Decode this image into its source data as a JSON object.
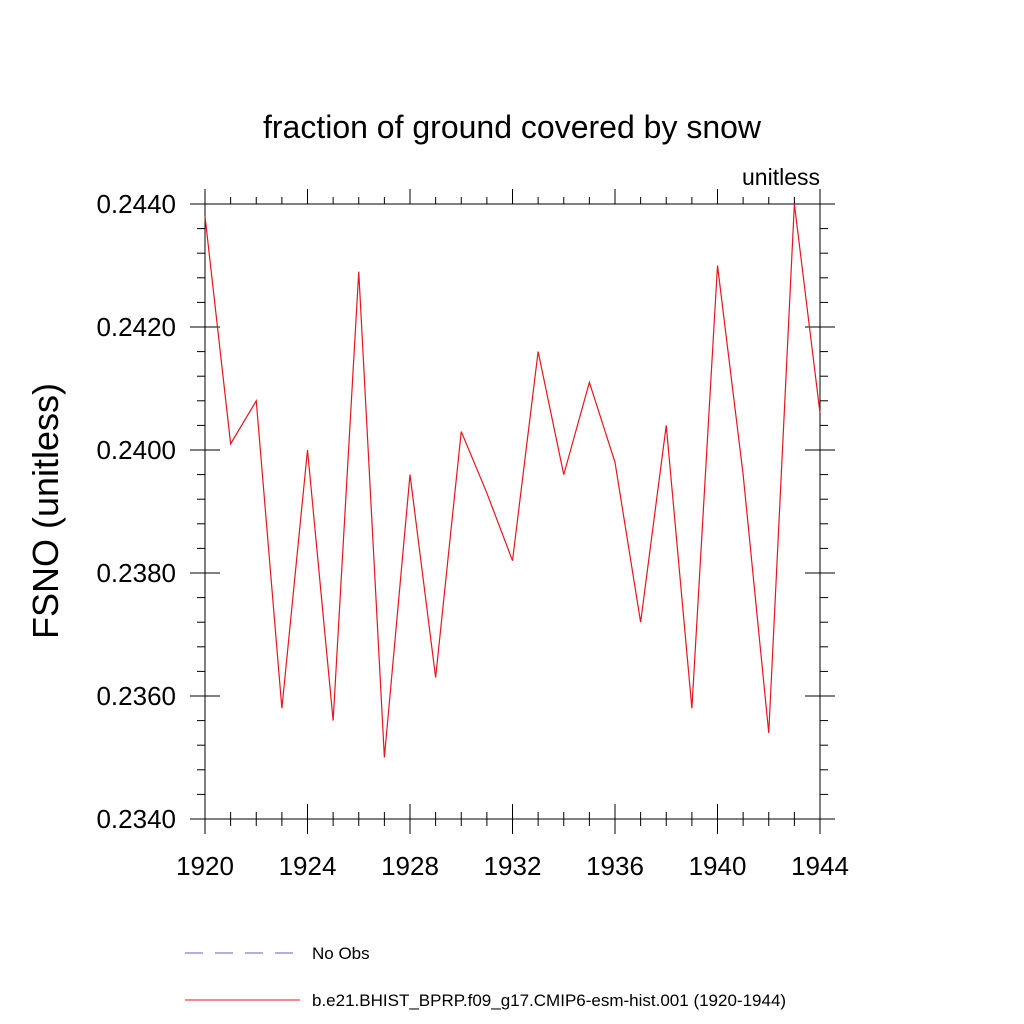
{
  "chart_data": {
    "type": "line",
    "title": "fraction of ground covered by snow",
    "units_label": "unitless",
    "ylabel": "FSNO  (unitless)",
    "xlabel": "",
    "xlim": [
      1920,
      1944
    ],
    "ylim": [
      0.234,
      0.244
    ],
    "x_ticks": [
      1920,
      1924,
      1928,
      1932,
      1936,
      1940,
      1944
    ],
    "x_tick_labels": [
      "1920",
      "1924",
      "1928",
      "1932",
      "1936",
      "1940",
      "1944"
    ],
    "y_ticks": [
      0.234,
      0.236,
      0.238,
      0.24,
      0.242,
      0.244
    ],
    "y_tick_labels": [
      "0.2340",
      "0.2360",
      "0.2380",
      "0.2400",
      "0.2420",
      "0.2440"
    ],
    "series": [
      {
        "name": "b.e21.BHIST_BPRP.f09_g17.CMIP6-esm-hist.001 (1920-1944)",
        "color": "#e8141e",
        "style": "solid",
        "x": [
          1920,
          1921,
          1922,
          1923,
          1924,
          1925,
          1926,
          1927,
          1928,
          1929,
          1930,
          1931,
          1932,
          1933,
          1934,
          1935,
          1936,
          1937,
          1938,
          1939,
          1940,
          1941,
          1942,
          1943,
          1944
        ],
        "values": [
          0.2438,
          0.2401,
          0.2408,
          0.2358,
          0.24,
          0.2356,
          0.2429,
          0.235,
          0.2396,
          0.2363,
          0.2403,
          0.2393,
          0.2382,
          0.2416,
          0.2396,
          0.2411,
          0.2398,
          0.2372,
          0.2404,
          0.2358,
          0.243,
          0.2396,
          0.2354,
          0.244,
          0.2406
        ]
      }
    ],
    "legend": [
      {
        "label": "No Obs",
        "color": "#6a5acd",
        "style": "dashed"
      },
      {
        "label": "b.e21.BHIST_BPRP.f09_g17.CMIP6-esm-hist.001 (1920-1944)",
        "color": "#e8141e",
        "style": "solid"
      }
    ]
  }
}
